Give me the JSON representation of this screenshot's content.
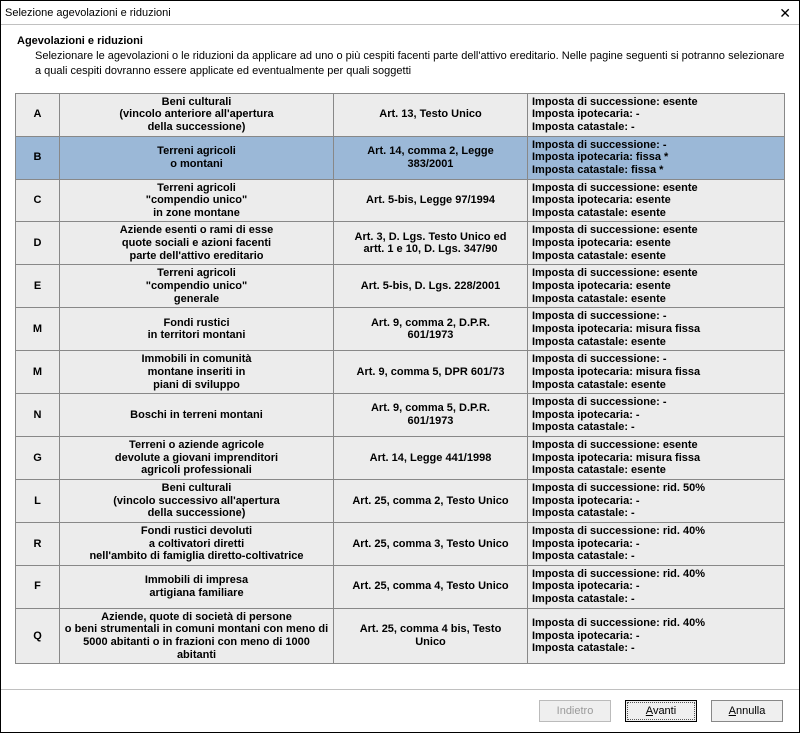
{
  "window": {
    "title": "Selezione agevolazioni e riduzioni",
    "close_label": "✕"
  },
  "header": {
    "title": "Agevolazioni e riduzioni",
    "description": "Selezionare le agevolazioni o le riduzioni da applicare ad uno o più cespiti facenti parte dell'attivo ereditario. Nelle pagine seguenti si potranno selezionare a quali cespiti dovranno essere applicate ed eventualmente per quali soggetti"
  },
  "rows": [
    {
      "code": "A",
      "desc": "Beni culturali\n(vincolo anteriore all'apertura\ndella successione)",
      "ref": "Art. 13, Testo Unico",
      "tax": "Imposta di successione: esente\nImposta ipotecaria: -\nImposta catastale: -",
      "selected": false
    },
    {
      "code": "B",
      "desc": "Terreni agricoli\no montani",
      "ref": "Art. 14, comma 2, Legge\n383/2001",
      "tax": "Imposta di successione: -\nImposta ipotecaria: fissa *\nImposta catastale: fissa *",
      "selected": true
    },
    {
      "code": "C",
      "desc": "Terreni agricoli\n\"compendio unico\"\nin zone montane",
      "ref": "Art. 5-bis, Legge 97/1994",
      "tax": "Imposta di successione: esente\nImposta ipotecaria: esente\nImposta catastale: esente",
      "selected": false
    },
    {
      "code": "D",
      "desc": "Aziende esenti o rami di esse\nquote sociali e azioni facenti\nparte dell'attivo ereditario",
      "ref": "Art. 3, D. Lgs. Testo Unico ed\nartt. 1 e 10, D. Lgs. 347/90",
      "tax": "Imposta di successione: esente\nImposta ipotecaria: esente\nImposta catastale: esente",
      "selected": false
    },
    {
      "code": "E",
      "desc": "Terreni agricoli\n\"compendio unico\"\ngenerale",
      "ref": "Art. 5-bis, D. Lgs. 228/2001",
      "tax": "Imposta di successione: esente\nImposta ipotecaria: esente\nImposta catastale: esente",
      "selected": false
    },
    {
      "code": "M",
      "desc": "Fondi rustici\nin territori montani",
      "ref": "Art. 9, comma 2, D.P.R.\n601/1973",
      "tax": "Imposta di successione: -\nImposta ipotecaria: misura fissa\nImposta catastale: esente",
      "selected": false
    },
    {
      "code": "M",
      "desc": "Immobili in comunità\nmontane inseriti in\npiani di sviluppo",
      "ref": "Art. 9, comma 5, DPR 601/73",
      "tax": "Imposta di successione: -\nImposta ipotecaria: misura fissa\nImposta catastale: esente",
      "selected": false
    },
    {
      "code": "N",
      "desc": "Boschi in terreni montani",
      "ref": "Art. 9, comma 5, D.P.R.\n601/1973",
      "tax": "Imposta di successione: -\nImposta ipotecaria: -\nImposta catastale: -",
      "selected": false
    },
    {
      "code": "G",
      "desc": "Terreni o aziende agricole\ndevolute a giovani imprenditori\nagricoli professionali",
      "ref": "Art. 14, Legge 441/1998",
      "tax": "Imposta di successione: esente\nImposta ipotecaria: misura fissa\nImposta catastale: esente",
      "selected": false
    },
    {
      "code": "L",
      "desc": "Beni culturali\n(vincolo successivo all'apertura\ndella successione)",
      "ref": "Art. 25, comma 2, Testo Unico",
      "tax": "Imposta di successione: rid. 50%\nImposta ipotecaria: -\nImposta catastale: -",
      "selected": false
    },
    {
      "code": "R",
      "desc": "Fondi rustici devoluti\na coltivatori diretti\nnell'ambito di famiglia diretto-coltivatrice",
      "ref": "Art. 25, comma 3, Testo Unico",
      "tax": "Imposta di successione: rid. 40%\nImposta ipotecaria: -\nImposta catastale: -",
      "selected": false
    },
    {
      "code": "F",
      "desc": "Immobili di impresa\nartigiana familiare",
      "ref": "Art. 25, comma 4, Testo Unico",
      "tax": "Imposta di successione: rid. 40%\nImposta ipotecaria: -\nImposta catastale: -",
      "selected": false
    },
    {
      "code": "Q",
      "desc": "Aziende, quote di società di persone\no beni strumentali in comuni montani con meno di\n5000 abitanti o in frazioni con meno di 1000 abitanti",
      "ref": "Art. 25, comma 4 bis, Testo\nUnico",
      "tax": "Imposta di successione: rid. 40%\nImposta ipotecaria: -\nImposta catastale: -",
      "selected": false
    }
  ],
  "footer": {
    "back_label": "Indietro",
    "next_label": "Avanti",
    "cancel_label": "Annulla"
  },
  "colors": {
    "row_bg": "#ececec",
    "selected_bg": "#9bb8d7",
    "border": "#888888"
  }
}
